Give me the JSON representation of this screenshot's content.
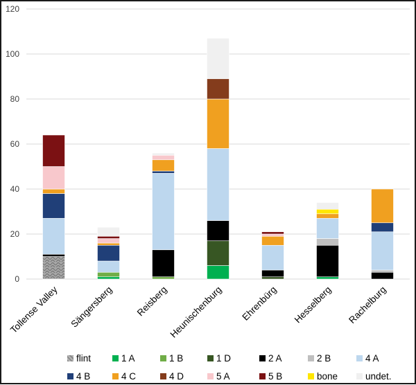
{
  "chart_data": {
    "type": "bar",
    "stacked": true,
    "title": "",
    "xlabel": "",
    "ylabel": "",
    "ylim": [
      0,
      120
    ],
    "yticks": [
      0,
      20,
      40,
      60,
      80,
      100,
      120
    ],
    "grid": true,
    "legend_position": "bottom",
    "categories": [
      "Tollense Valley",
      "Sängersberg",
      "Reisberg",
      "Heunischenburg",
      "Ehrenbürg",
      "Hesselberg",
      "Rachelburg"
    ],
    "series": [
      {
        "name": "flint",
        "color": "#a6a6a6",
        "pattern": "stone",
        "values": [
          10,
          0,
          0,
          0,
          0,
          0,
          0
        ]
      },
      {
        "name": "1 A",
        "color": "#00b050",
        "values": [
          0,
          1,
          0,
          6,
          0,
          1,
          0
        ]
      },
      {
        "name": "1 B",
        "color": "#70ad47",
        "values": [
          0,
          2,
          1,
          0,
          0,
          0,
          0
        ]
      },
      {
        "name": "1 D",
        "color": "#375623",
        "values": [
          0,
          0,
          0,
          11,
          1,
          0,
          0
        ]
      },
      {
        "name": "2 A",
        "color": "#000000",
        "values": [
          1,
          0,
          12,
          9,
          3,
          14,
          3
        ]
      },
      {
        "name": "2 B",
        "color": "#bfbfbf",
        "values": [
          0,
          0,
          0,
          0,
          0,
          3,
          1
        ]
      },
      {
        "name": "4 A",
        "color": "#bdd7ee",
        "values": [
          16,
          5,
          34,
          32,
          11,
          9,
          17
        ]
      },
      {
        "name": "4 B",
        "color": "#203f78",
        "values": [
          11,
          7,
          1,
          0,
          0,
          0,
          4
        ]
      },
      {
        "name": "4 C",
        "color": "#f0a020",
        "values": [
          2,
          1,
          5,
          22,
          4,
          2,
          15
        ]
      },
      {
        "name": "4 D",
        "color": "#843c1c",
        "values": [
          0,
          0,
          0,
          9,
          0,
          0,
          0
        ]
      },
      {
        "name": "5 A",
        "color": "#f8c8cc",
        "values": [
          10,
          2,
          2,
          0,
          1,
          0,
          0
        ]
      },
      {
        "name": "5 B",
        "color": "#7b1113",
        "values": [
          14,
          1,
          0,
          0,
          1,
          0,
          0
        ]
      },
      {
        "name": "bone",
        "color": "#ffe600",
        "values": [
          0,
          0,
          0,
          0,
          0,
          2,
          0
        ]
      },
      {
        "name": "undet.",
        "color": "#f0f0f0",
        "values": [
          0,
          4,
          1,
          18,
          0,
          3,
          0
        ]
      }
    ]
  },
  "legend": {
    "rows": [
      [
        "flint",
        "1 A",
        "1 B",
        "1 D",
        "2 A",
        "2 B",
        "4 A"
      ],
      [
        "4 B",
        "4 C",
        "4 D",
        "5 A",
        "5 B",
        "bone",
        "undet."
      ]
    ]
  }
}
